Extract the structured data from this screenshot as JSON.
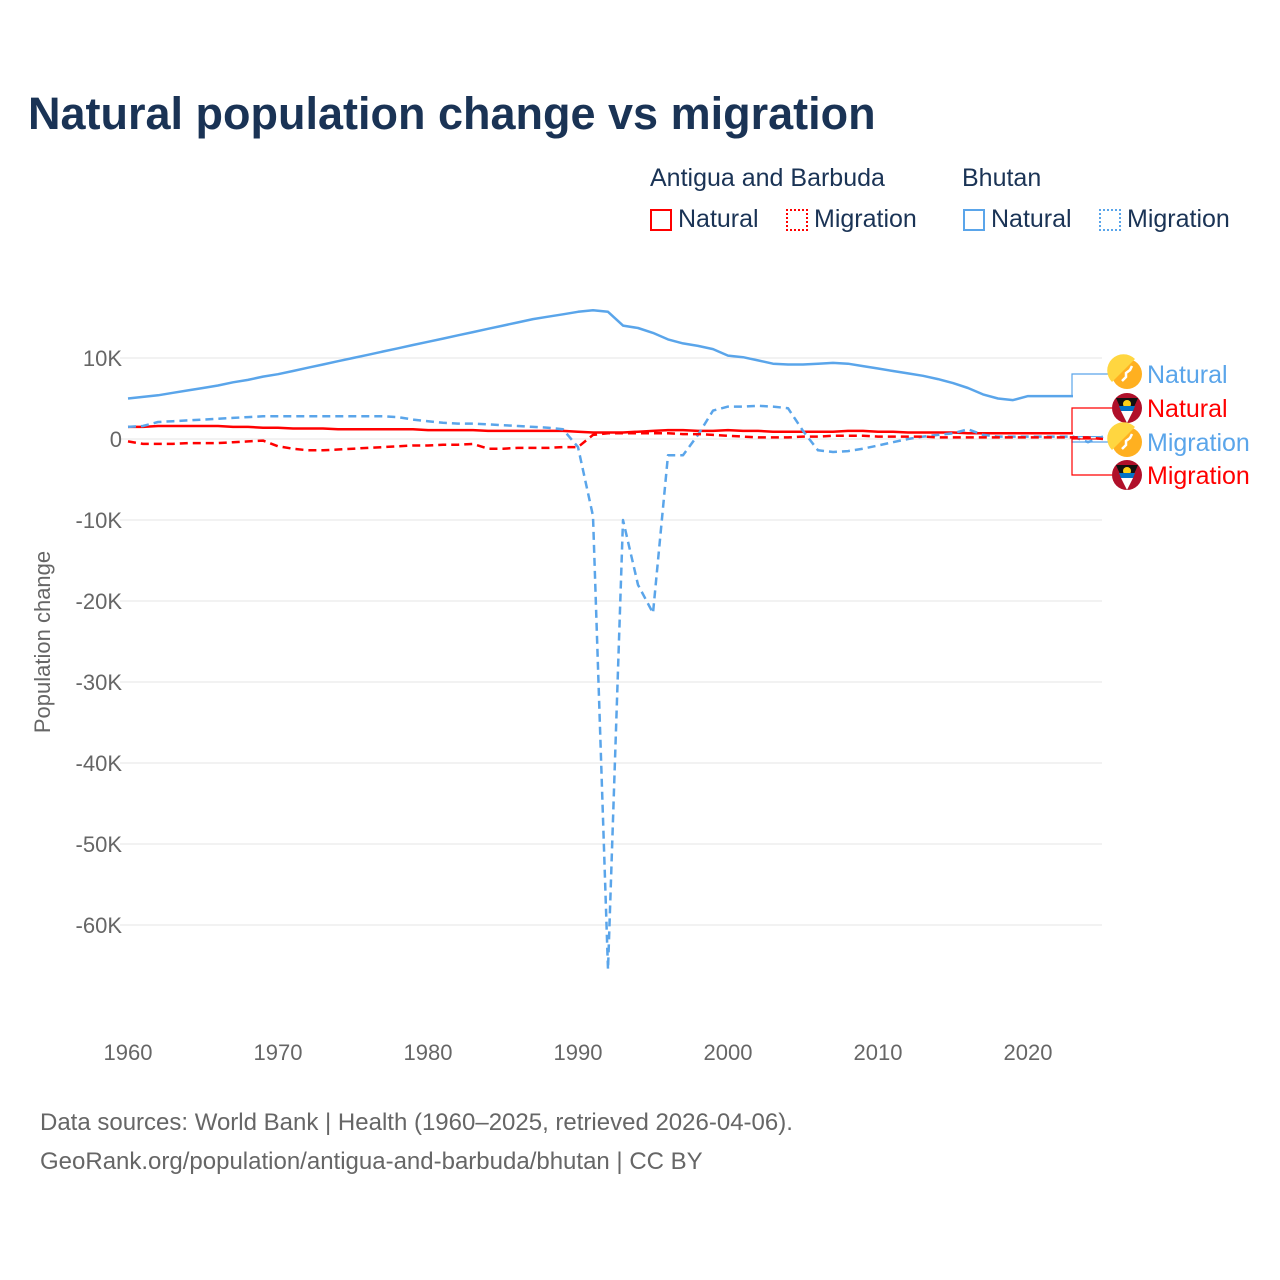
{
  "title": "Natural population change vs migration",
  "legend": {
    "groups": [
      "Antigua and Barbuda",
      "Bhutan"
    ],
    "items": [
      "Natural",
      "Migration",
      "Natural",
      "Migration"
    ]
  },
  "source": {
    "line1": "Data sources: World Bank | Health (1960–2025, retrieved 2026-04-06).",
    "line2": "GeoRank.org/population/antigua-and-barbuda/bhutan | CC BY"
  },
  "colors": {
    "antigua": "#ff0000",
    "bhutan": "#5aa5ea",
    "title": "#1a3355"
  },
  "chart_data": {
    "type": "line",
    "title": "Natural population change vs migration",
    "xlabel": "",
    "ylabel": "Population change",
    "xlim": [
      1960,
      2025
    ],
    "ylim": [
      -70000,
      20000
    ],
    "x_ticks": [
      1960,
      1970,
      1980,
      1990,
      2000,
      2010,
      2020
    ],
    "x_tick_labels": [
      "1960",
      "1970",
      "1980",
      "1990",
      "2000",
      "2010",
      "2020"
    ],
    "y_ticks": [
      10000,
      0,
      -10000,
      -20000,
      -30000,
      -40000,
      -50000,
      -60000
    ],
    "y_tick_labels": [
      "10K",
      "0",
      "-10K",
      "-20K",
      "-30K",
      "-40K",
      "-50K",
      "-60K"
    ],
    "grid": true,
    "legend_position": "top-right",
    "series": [
      {
        "name": "Bhutan Natural",
        "label": "Natural",
        "country": "bhutan",
        "dash": "solid",
        "start": 1960,
        "values": [
          5.0,
          5.2,
          5.4,
          5.7,
          6.0,
          6.3,
          6.6,
          7.0,
          7.3,
          7.7,
          8.0,
          8.4,
          8.8,
          9.2,
          9.6,
          10.0,
          10.4,
          10.8,
          11.2,
          11.6,
          12.0,
          12.4,
          12.8,
          13.2,
          13.6,
          14.0,
          14.4,
          14.8,
          15.1,
          15.4,
          15.7,
          15.9,
          15.7,
          14.0,
          13.7,
          13.1,
          12.3,
          11.8,
          11.5,
          11.1,
          10.3,
          10.1,
          9.7,
          9.3,
          9.2,
          9.2,
          9.3,
          9.4,
          9.3,
          9.0,
          8.7,
          8.4,
          8.1,
          7.8,
          7.4,
          6.9,
          6.3,
          5.5,
          5.0,
          4.8,
          5.3,
          5.3,
          5.3,
          5.3
        ]
      },
      {
        "name": "Antigua and Barbuda Natural",
        "label": "Natural",
        "country": "antigua",
        "dash": "solid",
        "start": 1960,
        "values": [
          1.5,
          1.5,
          1.6,
          1.6,
          1.6,
          1.6,
          1.6,
          1.5,
          1.5,
          1.4,
          1.4,
          1.3,
          1.3,
          1.3,
          1.2,
          1.2,
          1.2,
          1.2,
          1.2,
          1.2,
          1.1,
          1.1,
          1.1,
          1.1,
          1.0,
          1.0,
          1.0,
          1.0,
          1.0,
          1.0,
          0.9,
          0.8,
          0.8,
          0.8,
          0.9,
          1.0,
          1.1,
          1.1,
          1.0,
          1.0,
          1.1,
          1.0,
          1.0,
          0.9,
          0.9,
          0.9,
          0.9,
          0.9,
          1.0,
          1.0,
          0.9,
          0.9,
          0.8,
          0.8,
          0.8,
          0.8,
          0.7,
          0.7,
          0.7,
          0.7,
          0.7,
          0.7,
          0.7,
          0.7
        ]
      },
      {
        "name": "Bhutan Migration",
        "label": "Migration",
        "country": "bhutan",
        "dash": "dashed",
        "start": 1960,
        "values": [
          1.5,
          1.6,
          2.1,
          2.2,
          2.3,
          2.4,
          2.5,
          2.6,
          2.7,
          2.8,
          2.8,
          2.8,
          2.8,
          2.8,
          2.8,
          2.8,
          2.8,
          2.8,
          2.7,
          2.4,
          2.2,
          2.0,
          1.9,
          1.9,
          1.8,
          1.7,
          1.6,
          1.5,
          1.4,
          1.2,
          -1.0,
          -9.5,
          -65.5,
          -10.0,
          -18.0,
          -21.5,
          -2.0,
          -2.0,
          0.5,
          3.5,
          4.0,
          4.0,
          4.1,
          4.0,
          3.8,
          1.0,
          -1.4,
          -1.6,
          -1.5,
          -1.2,
          -0.8,
          -0.4,
          0.0,
          0.3,
          0.5,
          0.7,
          1.2,
          0.5,
          0.3,
          0.3,
          0.3,
          0.3,
          0.3,
          0.3,
          -0.4,
          0.3
        ]
      },
      {
        "name": "Antigua and Barbuda Migration",
        "label": "Migration",
        "country": "antigua",
        "dash": "dashed",
        "start": 1960,
        "values": [
          -0.3,
          -0.6,
          -0.6,
          -0.6,
          -0.5,
          -0.5,
          -0.5,
          -0.4,
          -0.3,
          -0.2,
          -0.9,
          -1.2,
          -1.4,
          -1.4,
          -1.3,
          -1.2,
          -1.1,
          -1.0,
          -0.9,
          -0.8,
          -0.8,
          -0.7,
          -0.7,
          -0.6,
          -1.2,
          -1.2,
          -1.1,
          -1.1,
          -1.1,
          -1.0,
          -1.0,
          0.5,
          0.7,
          0.7,
          0.7,
          0.7,
          0.7,
          0.6,
          0.6,
          0.5,
          0.4,
          0.3,
          0.2,
          0.2,
          0.2,
          0.3,
          0.3,
          0.4,
          0.4,
          0.4,
          0.3,
          0.3,
          0.3,
          0.3,
          0.2,
          0.2,
          0.2,
          0.2,
          0.2,
          0.2,
          0.2,
          0.2,
          0.2,
          0.2,
          0.2,
          0.0
        ]
      }
    ]
  }
}
